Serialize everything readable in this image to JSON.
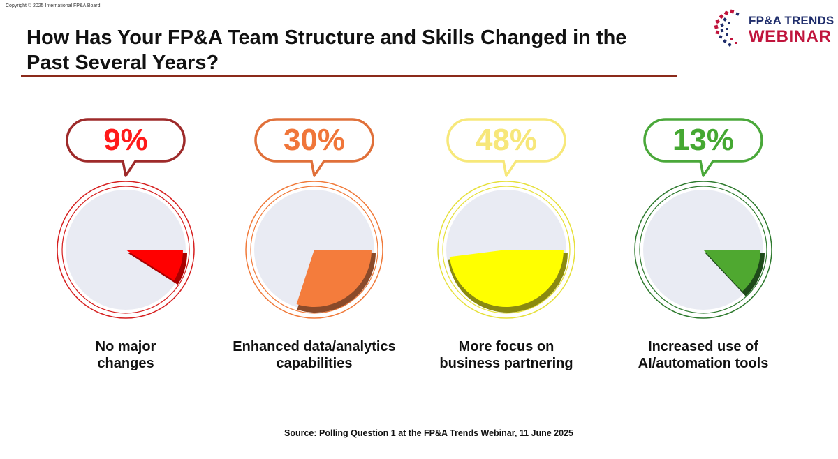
{
  "copyright": "Copyright © 2025 International FP&A Board",
  "logo": {
    "line1": "FP&A TRENDS",
    "line2": "WEBINAR"
  },
  "title": "How Has Your FP&A Team Structure and Skills Changed in the Past Several Years?",
  "source": "Source: Polling Question 1 at the FP&A Trends Webinar, 11 June 2025",
  "chart_data": {
    "type": "pie",
    "series": [
      {
        "category": "No major changes",
        "value": 9,
        "label": "9%",
        "color": "#ff0000",
        "dark": "#a80000",
        "ring": "#d62020",
        "bubble": "#9e2a2a"
      },
      {
        "category": "Enhanced data/analytics capabilities",
        "value": 30,
        "label": "30%",
        "color": "#f47c3c",
        "dark": "#8a4a2a",
        "ring": "#f07a3a",
        "bubble": "#e0703a"
      },
      {
        "category": "More focus on business partnering",
        "value": 48,
        "label": "48%",
        "color": "#ffff00",
        "dark": "#8a8a10",
        "ring": "#e6e03a",
        "bubble": "#f7e87a"
      },
      {
        "category": "Increased use of AI/automation tools",
        "value": 13,
        "label": "13%",
        "color": "#4fa830",
        "dark": "#1e4a1a",
        "ring": "#2e7a2e",
        "bubble": "#4aa83a"
      }
    ]
  }
}
